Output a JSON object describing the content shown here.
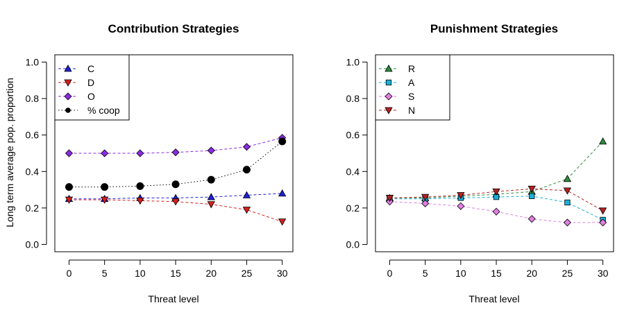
{
  "chart_data": [
    {
      "type": "line",
      "title": "Contribution Strategies",
      "xlabel": "Threat level",
      "ylabel": "Long term average pop. proportion",
      "x": [
        0,
        5,
        10,
        15,
        20,
        25,
        30
      ],
      "xlim": [
        -2,
        31.5
      ],
      "ylim": [
        -0.04,
        1.04
      ],
      "xticks": [
        0,
        5,
        10,
        15,
        20,
        25,
        30
      ],
      "yticks": [
        "0.0",
        "0.2",
        "0.4",
        "0.6",
        "0.8",
        "1.0"
      ],
      "legend_position": "top-left",
      "series": [
        {
          "name": "C",
          "values": [
            0.25,
            0.25,
            0.255,
            0.255,
            0.26,
            0.27,
            0.28
          ],
          "color": "#1f1fd6",
          "marker": "triangle-up",
          "dash": "dashed"
        },
        {
          "name": "D",
          "values": [
            0.245,
            0.245,
            0.24,
            0.235,
            0.22,
            0.19,
            0.125
          ],
          "color": "#d61f1f",
          "marker": "triangle-down",
          "dash": "dashed"
        },
        {
          "name": "O",
          "values": [
            0.5,
            0.5,
            0.5,
            0.505,
            0.515,
            0.535,
            0.585
          ],
          "color": "#8a2be2",
          "marker": "diamond",
          "dash": "dashed"
        },
        {
          "name": "% coop",
          "values": [
            0.315,
            0.315,
            0.32,
            0.33,
            0.355,
            0.41,
            0.565
          ],
          "color": "#000000",
          "marker": "circle",
          "dash": "dotted"
        }
      ]
    },
    {
      "type": "line",
      "title": "Punishment Strategies",
      "xlabel": "Threat level",
      "ylabel": "",
      "x": [
        0,
        5,
        10,
        15,
        20,
        25,
        30
      ],
      "xlim": [
        -2,
        31.5
      ],
      "ylim": [
        -0.04,
        1.04
      ],
      "xticks": [
        0,
        5,
        10,
        15,
        20,
        25,
        30
      ],
      "yticks": [
        "0.0",
        "0.2",
        "0.4",
        "0.6",
        "0.8",
        "1.0"
      ],
      "legend_position": "top-left",
      "series": [
        {
          "name": "R",
          "values": [
            0.255,
            0.255,
            0.265,
            0.275,
            0.29,
            0.36,
            0.565
          ],
          "color": "#2e8b3e",
          "marker": "triangle-up",
          "dash": "dashed"
        },
        {
          "name": "A",
          "values": [
            0.25,
            0.25,
            0.255,
            0.26,
            0.265,
            0.23,
            0.135
          ],
          "color": "#1ab0d8",
          "marker": "square",
          "dash": "dashed"
        },
        {
          "name": "S",
          "values": [
            0.235,
            0.225,
            0.21,
            0.18,
            0.14,
            0.12,
            0.12
          ],
          "color": "#e07ee0",
          "marker": "diamond",
          "dash": "dashed"
        },
        {
          "name": "N",
          "values": [
            0.255,
            0.26,
            0.27,
            0.29,
            0.305,
            0.295,
            0.185
          ],
          "color": "#b22222",
          "marker": "triangle-down",
          "dash": "dashed"
        }
      ]
    }
  ]
}
